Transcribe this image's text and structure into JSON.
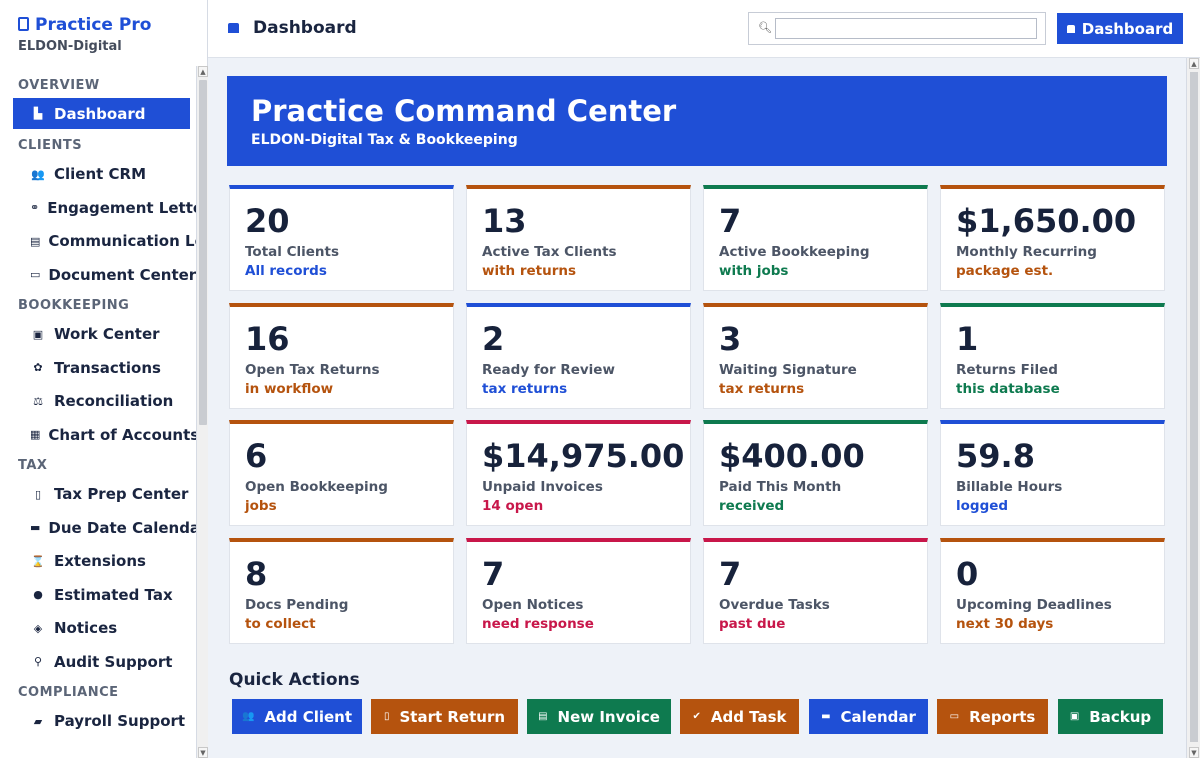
{
  "brand": {
    "name": "Practice Pro",
    "org": "ELDON-Digital"
  },
  "header": {
    "title": "Dashboard",
    "search_placeholder": "",
    "button_label": "Dashboard"
  },
  "sidebar": {
    "sections": [
      {
        "title": "OVERVIEW",
        "items": [
          {
            "label": "Dashboard",
            "icon": "chart-icon",
            "glyph": "▙",
            "active": true
          }
        ]
      },
      {
        "title": "CLIENTS",
        "items": [
          {
            "label": "Client CRM",
            "icon": "users-icon",
            "glyph": "👥"
          },
          {
            "label": "Engagement Letters",
            "icon": "link-icon",
            "glyph": "⚭"
          },
          {
            "label": "Communication Log",
            "icon": "message-icon",
            "glyph": "▤"
          },
          {
            "label": "Document Center",
            "icon": "document-icon",
            "glyph": "▭"
          }
        ]
      },
      {
        "title": "BOOKKEEPING",
        "items": [
          {
            "label": "Work Center",
            "icon": "book-icon",
            "glyph": "▣"
          },
          {
            "label": "Transactions",
            "icon": "cycle-icon",
            "glyph": "✿"
          },
          {
            "label": "Reconciliation",
            "icon": "scale-icon",
            "glyph": "⚖"
          },
          {
            "label": "Chart of Accounts",
            "icon": "ledger-icon",
            "glyph": "▦"
          }
        ]
      },
      {
        "title": "TAX",
        "items": [
          {
            "label": "Tax Prep Center",
            "icon": "clipboard-icon",
            "glyph": "▯"
          },
          {
            "label": "Due Date Calendar",
            "icon": "calendar-icon",
            "glyph": "▬"
          },
          {
            "label": "Extensions",
            "icon": "hourglass-icon",
            "glyph": "⌛"
          },
          {
            "label": "Estimated Tax",
            "icon": "money-bag-icon",
            "glyph": "●"
          },
          {
            "label": "Notices",
            "icon": "megaphone-icon",
            "glyph": "◈"
          },
          {
            "label": "Audit Support",
            "icon": "magnifier-icon",
            "glyph": "⚲"
          }
        ]
      },
      {
        "title": "COMPLIANCE",
        "items": [
          {
            "label": "Payroll Support",
            "icon": "briefcase-icon",
            "glyph": "▰"
          }
        ]
      }
    ]
  },
  "hero": {
    "title": "Practice Command Center",
    "subtitle": "ELDON-Digital Tax & Bookkeeping"
  },
  "cards": [
    {
      "value": "20",
      "label": "Total Clients",
      "note": "All records",
      "color": "#1f4fd6"
    },
    {
      "value": "13",
      "label": "Active Tax Clients",
      "note": "with returns",
      "color": "#b5530e"
    },
    {
      "value": "7",
      "label": "Active Bookkeeping",
      "note": "with jobs",
      "color": "#0e7a4f"
    },
    {
      "value": "$1,650.00",
      "label": "Monthly Recurring",
      "note": "package est.",
      "color": "#b5530e"
    },
    {
      "value": "16",
      "label": "Open Tax Returns",
      "note": "in workflow",
      "color": "#b5530e"
    },
    {
      "value": "2",
      "label": "Ready for Review",
      "note": "tax returns",
      "color": "#1f4fd6"
    },
    {
      "value": "3",
      "label": "Waiting Signature",
      "note": "tax returns",
      "color": "#b5530e"
    },
    {
      "value": "1",
      "label": "Returns Filed",
      "note": "this database",
      "color": "#0e7a4f"
    },
    {
      "value": "6",
      "label": "Open Bookkeeping",
      "note": "jobs",
      "color": "#b5530e"
    },
    {
      "value": "$14,975.00",
      "label": "Unpaid Invoices",
      "note": "14 open",
      "color": "#c8174a"
    },
    {
      "value": "$400.00",
      "label": "Paid This Month",
      "note": "received",
      "color": "#0e7a4f"
    },
    {
      "value": "59.8",
      "label": "Billable Hours",
      "note": "logged",
      "color": "#1f4fd6"
    },
    {
      "value": "8",
      "label": "Docs Pending",
      "note": "to collect",
      "color": "#b5530e"
    },
    {
      "value": "7",
      "label": "Open Notices",
      "note": "need response",
      "color": "#c8174a"
    },
    {
      "value": "7",
      "label": "Overdue Tasks",
      "note": "past due",
      "color": "#c8174a"
    },
    {
      "value": "0",
      "label": "Upcoming Deadlines",
      "note": "next 30 days",
      "color": "#b5530e"
    }
  ],
  "quick_actions": {
    "title": "Quick Actions",
    "buttons": [
      {
        "label": "Add Client",
        "icon": "users-icon",
        "glyph": "👥",
        "color": "#1f4fd6"
      },
      {
        "label": "Start Return",
        "icon": "clipboard-icon",
        "glyph": "▯",
        "color": "#b5530e"
      },
      {
        "label": "New Invoice",
        "icon": "invoice-icon",
        "glyph": "▤",
        "color": "#0e7a4f"
      },
      {
        "label": "Add Task",
        "icon": "check-icon",
        "glyph": "✔",
        "color": "#b5530e"
      },
      {
        "label": "Calendar",
        "icon": "calendar-icon",
        "glyph": "▬",
        "color": "#1f4fd6"
      },
      {
        "label": "Reports",
        "icon": "report-icon",
        "glyph": "▭",
        "color": "#b5530e"
      },
      {
        "label": "Backup",
        "icon": "save-icon",
        "glyph": "▣",
        "color": "#0e7a4f"
      }
    ]
  }
}
